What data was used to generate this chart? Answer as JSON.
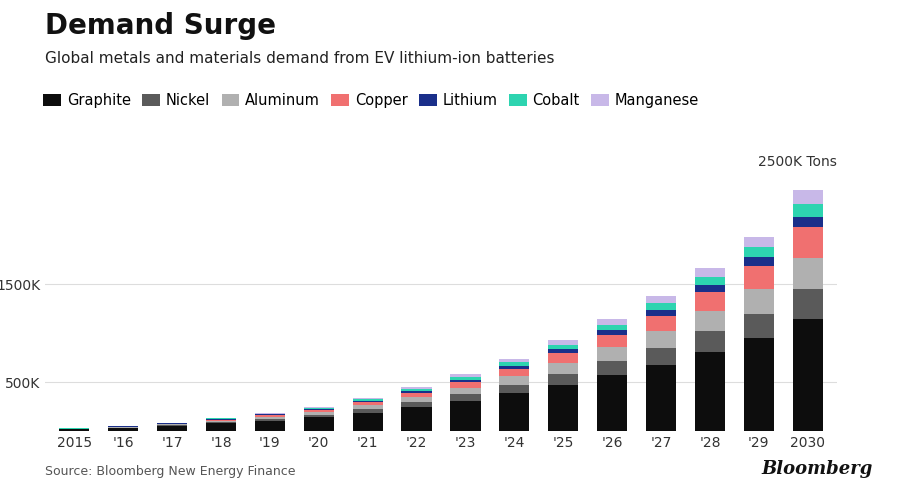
{
  "title": "Demand Surge",
  "subtitle": "Global metals and materials demand from EV lithium-ion batteries",
  "source": "Source: Bloomberg New Energy Finance",
  "ylabel_top": "2500K Tons",
  "years": [
    2015,
    2016,
    2017,
    2018,
    2019,
    2020,
    2021,
    2022,
    2023,
    2024,
    2025,
    2026,
    2027,
    2028,
    2029,
    2030
  ],
  "year_labels": [
    "2015",
    "'16",
    "'17",
    "'18",
    "'19",
    "'20",
    "'21",
    "'22",
    "'23",
    "'24",
    "'25",
    "'26",
    "'27",
    "'28",
    "'29",
    "2030"
  ],
  "materials": [
    "Graphite",
    "Nickel",
    "Aluminum",
    "Copper",
    "Lithium",
    "Cobalt",
    "Manganese"
  ],
  "colors": [
    "#0d0d0d",
    "#5a5a5a",
    "#b0b0b0",
    "#f07070",
    "#1a2f8a",
    "#2dd4b0",
    "#c8b8e8"
  ],
  "data": {
    "Graphite": [
      18,
      32,
      52,
      80,
      108,
      142,
      188,
      242,
      308,
      385,
      475,
      575,
      680,
      810,
      950,
      1150
    ],
    "Nickel": [
      3,
      5,
      9,
      14,
      20,
      27,
      38,
      52,
      68,
      88,
      112,
      140,
      170,
      208,
      248,
      305
    ],
    "Aluminum": [
      3,
      5,
      9,
      14,
      20,
      27,
      38,
      52,
      68,
      88,
      112,
      140,
      170,
      208,
      248,
      310
    ],
    "Copper": [
      2,
      4,
      7,
      11,
      16,
      22,
      30,
      42,
      56,
      74,
      98,
      125,
      155,
      192,
      240,
      315
    ],
    "Lithium": [
      1,
      2,
      3,
      5,
      7,
      10,
      14,
      18,
      24,
      31,
      40,
      50,
      60,
      72,
      88,
      110
    ],
    "Cobalt": [
      1,
      2,
      4,
      6,
      9,
      12,
      17,
      22,
      29,
      36,
      46,
      58,
      70,
      86,
      104,
      130
    ],
    "Manganese": [
      1,
      2,
      4,
      6,
      9,
      12,
      17,
      22,
      29,
      36,
      46,
      58,
      70,
      86,
      104,
      145
    ]
  },
  "ytick_positions": [
    500,
    1500
  ],
  "ytick_labels": [
    "500K",
    "1500K"
  ],
  "ylim": [
    0,
    2600
  ],
  "bg_color": "#ffffff",
  "chart_bg": "#ffffff",
  "grid_color": "#dddddd",
  "bar_width": 0.62,
  "bloomberg_text": "Bloomberg",
  "title_fontsize": 20,
  "subtitle_fontsize": 11,
  "legend_fontsize": 10.5,
  "tick_fontsize": 10,
  "source_fontsize": 9
}
